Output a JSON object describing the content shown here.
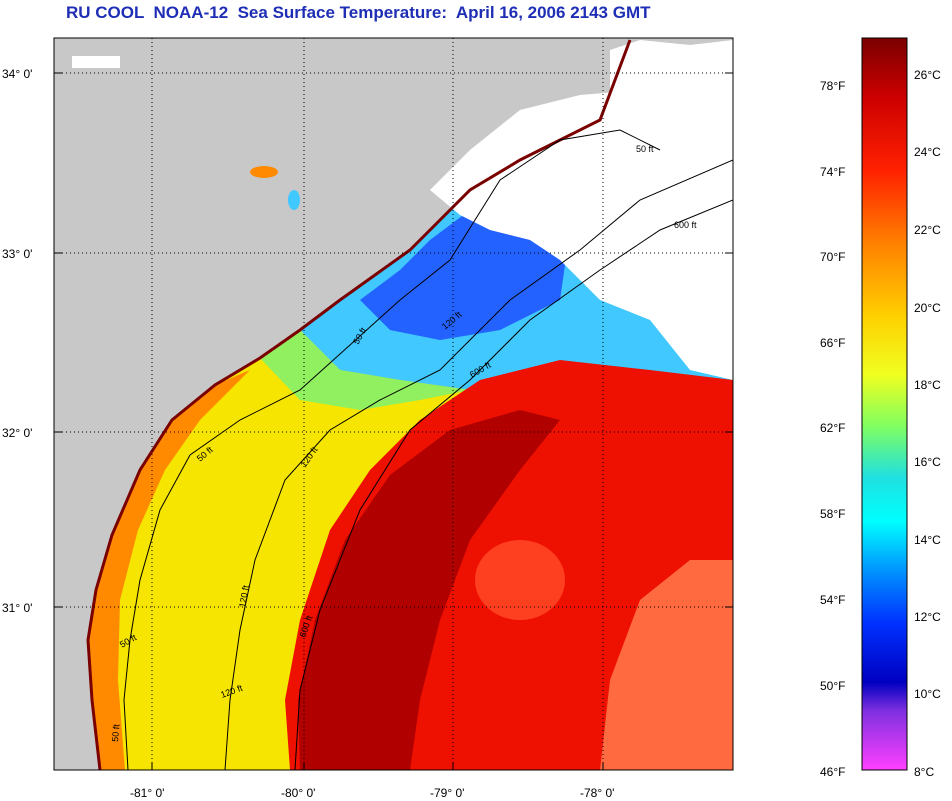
{
  "title": "RU COOL  NOAA-12  Sea Surface Temperature:  April 16, 2006 2143 GMT",
  "map": {
    "lat_ticks": [
      "34° 0'",
      "33° 0'",
      "32° 0'",
      "31° 0'"
    ],
    "lon_ticks": [
      "-81° 0'",
      "-80° 0'",
      "-79° 0'",
      "-78° 0'"
    ],
    "contour_labels": [
      "50 ft",
      "600 ft",
      "50 ft",
      "120 ft",
      "600 ft",
      "50 ft",
      "120 ft",
      "600 ft",
      "120 ft",
      "50 ft",
      "120 ft",
      "50 ft"
    ],
    "colors": {
      "land": "#c8c8c8",
      "cloud": "#ffffff",
      "gridline": "#000000"
    }
  },
  "colorbar": {
    "fahrenheit": [
      "78°F",
      "74°F",
      "70°F",
      "66°F",
      "62°F",
      "58°F",
      "54°F",
      "50°F",
      "46°F"
    ],
    "celsius": [
      "26°C",
      "24°C",
      "22°C",
      "20°C",
      "18°C",
      "16°C",
      "14°C",
      "12°C",
      "10°C",
      "8°C"
    ],
    "gradient": [
      "#8b0000",
      "#ff0000",
      "#ff8000",
      "#ffff00",
      "#80ff80",
      "#00ffff",
      "#0080ff",
      "#0000ff",
      "#8020e0",
      "#ff40ff"
    ]
  }
}
